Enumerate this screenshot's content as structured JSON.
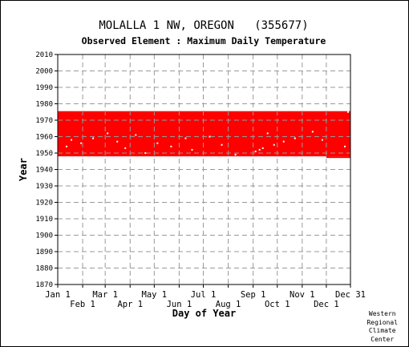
{
  "chart_data": {
    "type": "area",
    "title": "MOLALLA 1 NW, OREGON   (355677)",
    "subtitle": "Observed Element : Maximum Daily Temperature",
    "xlabel": "Day of Year",
    "ylabel": "Year",
    "ylim": [
      1870,
      2010
    ],
    "y_ticks": [
      1870,
      1880,
      1890,
      1900,
      1910,
      1920,
      1930,
      1940,
      1950,
      1960,
      1970,
      1980,
      1990,
      2000,
      2010
    ],
    "xlim": [
      1,
      365
    ],
    "x_ticks_upper": [
      {
        "label": "Jan 1",
        "day": 1
      },
      {
        "label": "Mar 1",
        "day": 60
      },
      {
        "label": "May 1",
        "day": 121
      },
      {
        "label": "Jul 1",
        "day": 182
      },
      {
        "label": "Sep 1",
        "day": 244
      },
      {
        "label": "Nov 1",
        "day": 305
      },
      {
        "label": "Dec 31",
        "day": 365
      }
    ],
    "x_ticks_lower": [
      {
        "label": "Feb 1",
        "day": 32
      },
      {
        "label": "Apr 1",
        "day": 91
      },
      {
        "label": "Jun 1",
        "day": 152
      },
      {
        "label": "Aug 1",
        "day": 213
      },
      {
        "label": "Oct 1",
        "day": 274
      },
      {
        "label": "Dec 1",
        "day": 335
      }
    ],
    "grid": true,
    "series": [
      {
        "color": "#ff0000",
        "year_start": 1948,
        "year_end": 1975.5,
        "note_extension": {
          "day_start": 335,
          "day_end": 365,
          "year_start": 1947
        }
      }
    ],
    "missing_points": [
      {
        "day": 12,
        "year": 1954
      },
      {
        "day": 18,
        "year": 1958
      },
      {
        "day": 30,
        "year": 1956
      },
      {
        "day": 45,
        "year": 1959
      },
      {
        "day": 63,
        "year": 1962
      },
      {
        "day": 75,
        "year": 1957
      },
      {
        "day": 85,
        "year": 1953
      },
      {
        "day": 98,
        "year": 1961
      },
      {
        "day": 110,
        "year": 1950
      },
      {
        "day": 125,
        "year": 1956
      },
      {
        "day": 142,
        "year": 1954
      },
      {
        "day": 160,
        "year": 1959
      },
      {
        "day": 168,
        "year": 1952
      },
      {
        "day": 190,
        "year": 1960
      },
      {
        "day": 205,
        "year": 1955
      },
      {
        "day": 222,
        "year": 1949
      },
      {
        "day": 247,
        "year": 1951
      },
      {
        "day": 252,
        "year": 1952
      },
      {
        "day": 256,
        "year": 1953
      },
      {
        "day": 262,
        "year": 1962
      },
      {
        "day": 270,
        "year": 1955
      },
      {
        "day": 282,
        "year": 1957
      },
      {
        "day": 296,
        "year": 1959
      },
      {
        "day": 318,
        "year": 1963
      },
      {
        "day": 330,
        "year": 1958
      },
      {
        "day": 358,
        "year": 1954
      },
      {
        "day": 362,
        "year": 1975
      }
    ]
  },
  "credit": [
    "Western",
    "Regional",
    "Climate",
    "Center"
  ],
  "colors": {
    "data": "#ff0000",
    "grid": "#999999",
    "axis": "#000000"
  }
}
